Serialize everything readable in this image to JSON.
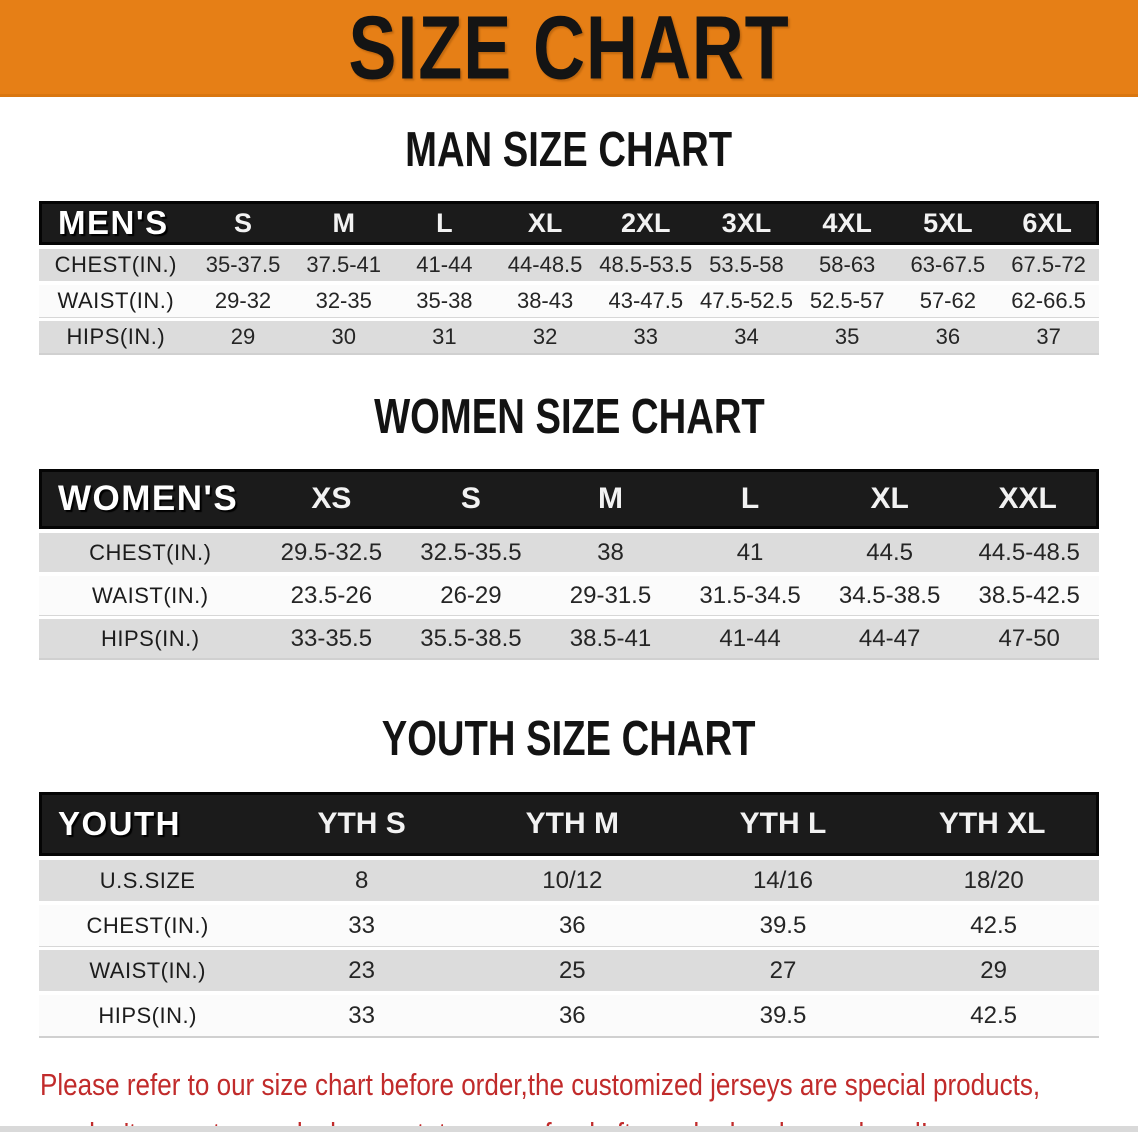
{
  "banner": {
    "title": "SIZE CHART",
    "bg_color": "#E67F16"
  },
  "sections": [
    {
      "id": "men",
      "heading": "MAN SIZE CHART",
      "corner_label": "MEN'S",
      "columns": [
        "S",
        "M",
        "L",
        "XL",
        "2XL",
        "3XL",
        "4XL",
        "5XL",
        "6XL"
      ],
      "rows": [
        {
          "label": "CHEST(IN.)",
          "values": [
            "35-37.5",
            "37.5-41",
            "41-44",
            "44-48.5",
            "48.5-53.5",
            "53.5-58",
            "58-63",
            "63-67.5",
            "67.5-72"
          ]
        },
        {
          "label": "WAIST(IN.)",
          "values": [
            "29-32",
            "32-35",
            "35-38",
            "38-43",
            "43-47.5",
            "47.5-52.5",
            "52.5-57",
            "57-62",
            "62-66.5"
          ]
        },
        {
          "label": "HIPS(IN.)",
          "values": [
            "29",
            "30",
            "31",
            "32",
            "33",
            "34",
            "35",
            "36",
            "37"
          ]
        }
      ]
    },
    {
      "id": "women",
      "heading": "WOMEN SIZE CHART",
      "corner_label": "WOMEN'S",
      "columns": [
        "XS",
        "S",
        "M",
        "L",
        "XL",
        "XXL"
      ],
      "rows": [
        {
          "label": "CHEST(IN.)",
          "values": [
            "29.5-32.5",
            "32.5-35.5",
            "38",
            "41",
            "44.5",
            "44.5-48.5"
          ]
        },
        {
          "label": "WAIST(IN.)",
          "values": [
            "23.5-26",
            "26-29",
            "29-31.5",
            "31.5-34.5",
            "34.5-38.5",
            "38.5-42.5"
          ]
        },
        {
          "label": "HIPS(IN.)",
          "values": [
            "33-35.5",
            "35.5-38.5",
            "38.5-41",
            "41-44",
            "44-47",
            "47-50"
          ]
        }
      ]
    },
    {
      "id": "youth",
      "heading": "YOUTH SIZE CHART",
      "corner_label": "YOUTH",
      "columns": [
        "YTH S",
        "YTH M",
        "YTH L",
        "YTH XL"
      ],
      "rows": [
        {
          "label": "U.S.SIZE",
          "values": [
            "8",
            "10/12",
            "14/16",
            "18/20"
          ]
        },
        {
          "label": "CHEST(IN.)",
          "values": [
            "33",
            "36",
            "39.5",
            "42.5"
          ]
        },
        {
          "label": "WAIST(IN.)",
          "values": [
            "23",
            "25",
            "27",
            "29"
          ]
        },
        {
          "label": "HIPS(IN.)",
          "values": [
            "33",
            "36",
            "39.5",
            "42.5"
          ]
        }
      ]
    }
  ],
  "corner_col_widths": {
    "men": "14.5%",
    "women": "21%",
    "youth": "20.5%"
  },
  "footer": {
    "color": "#C12B2B",
    "lines": [
      "Please refer to our size chart before order,the customized jerseys are special products,",
      "we don't accept cancel, change, teturn or refund after order has been placed!"
    ]
  }
}
